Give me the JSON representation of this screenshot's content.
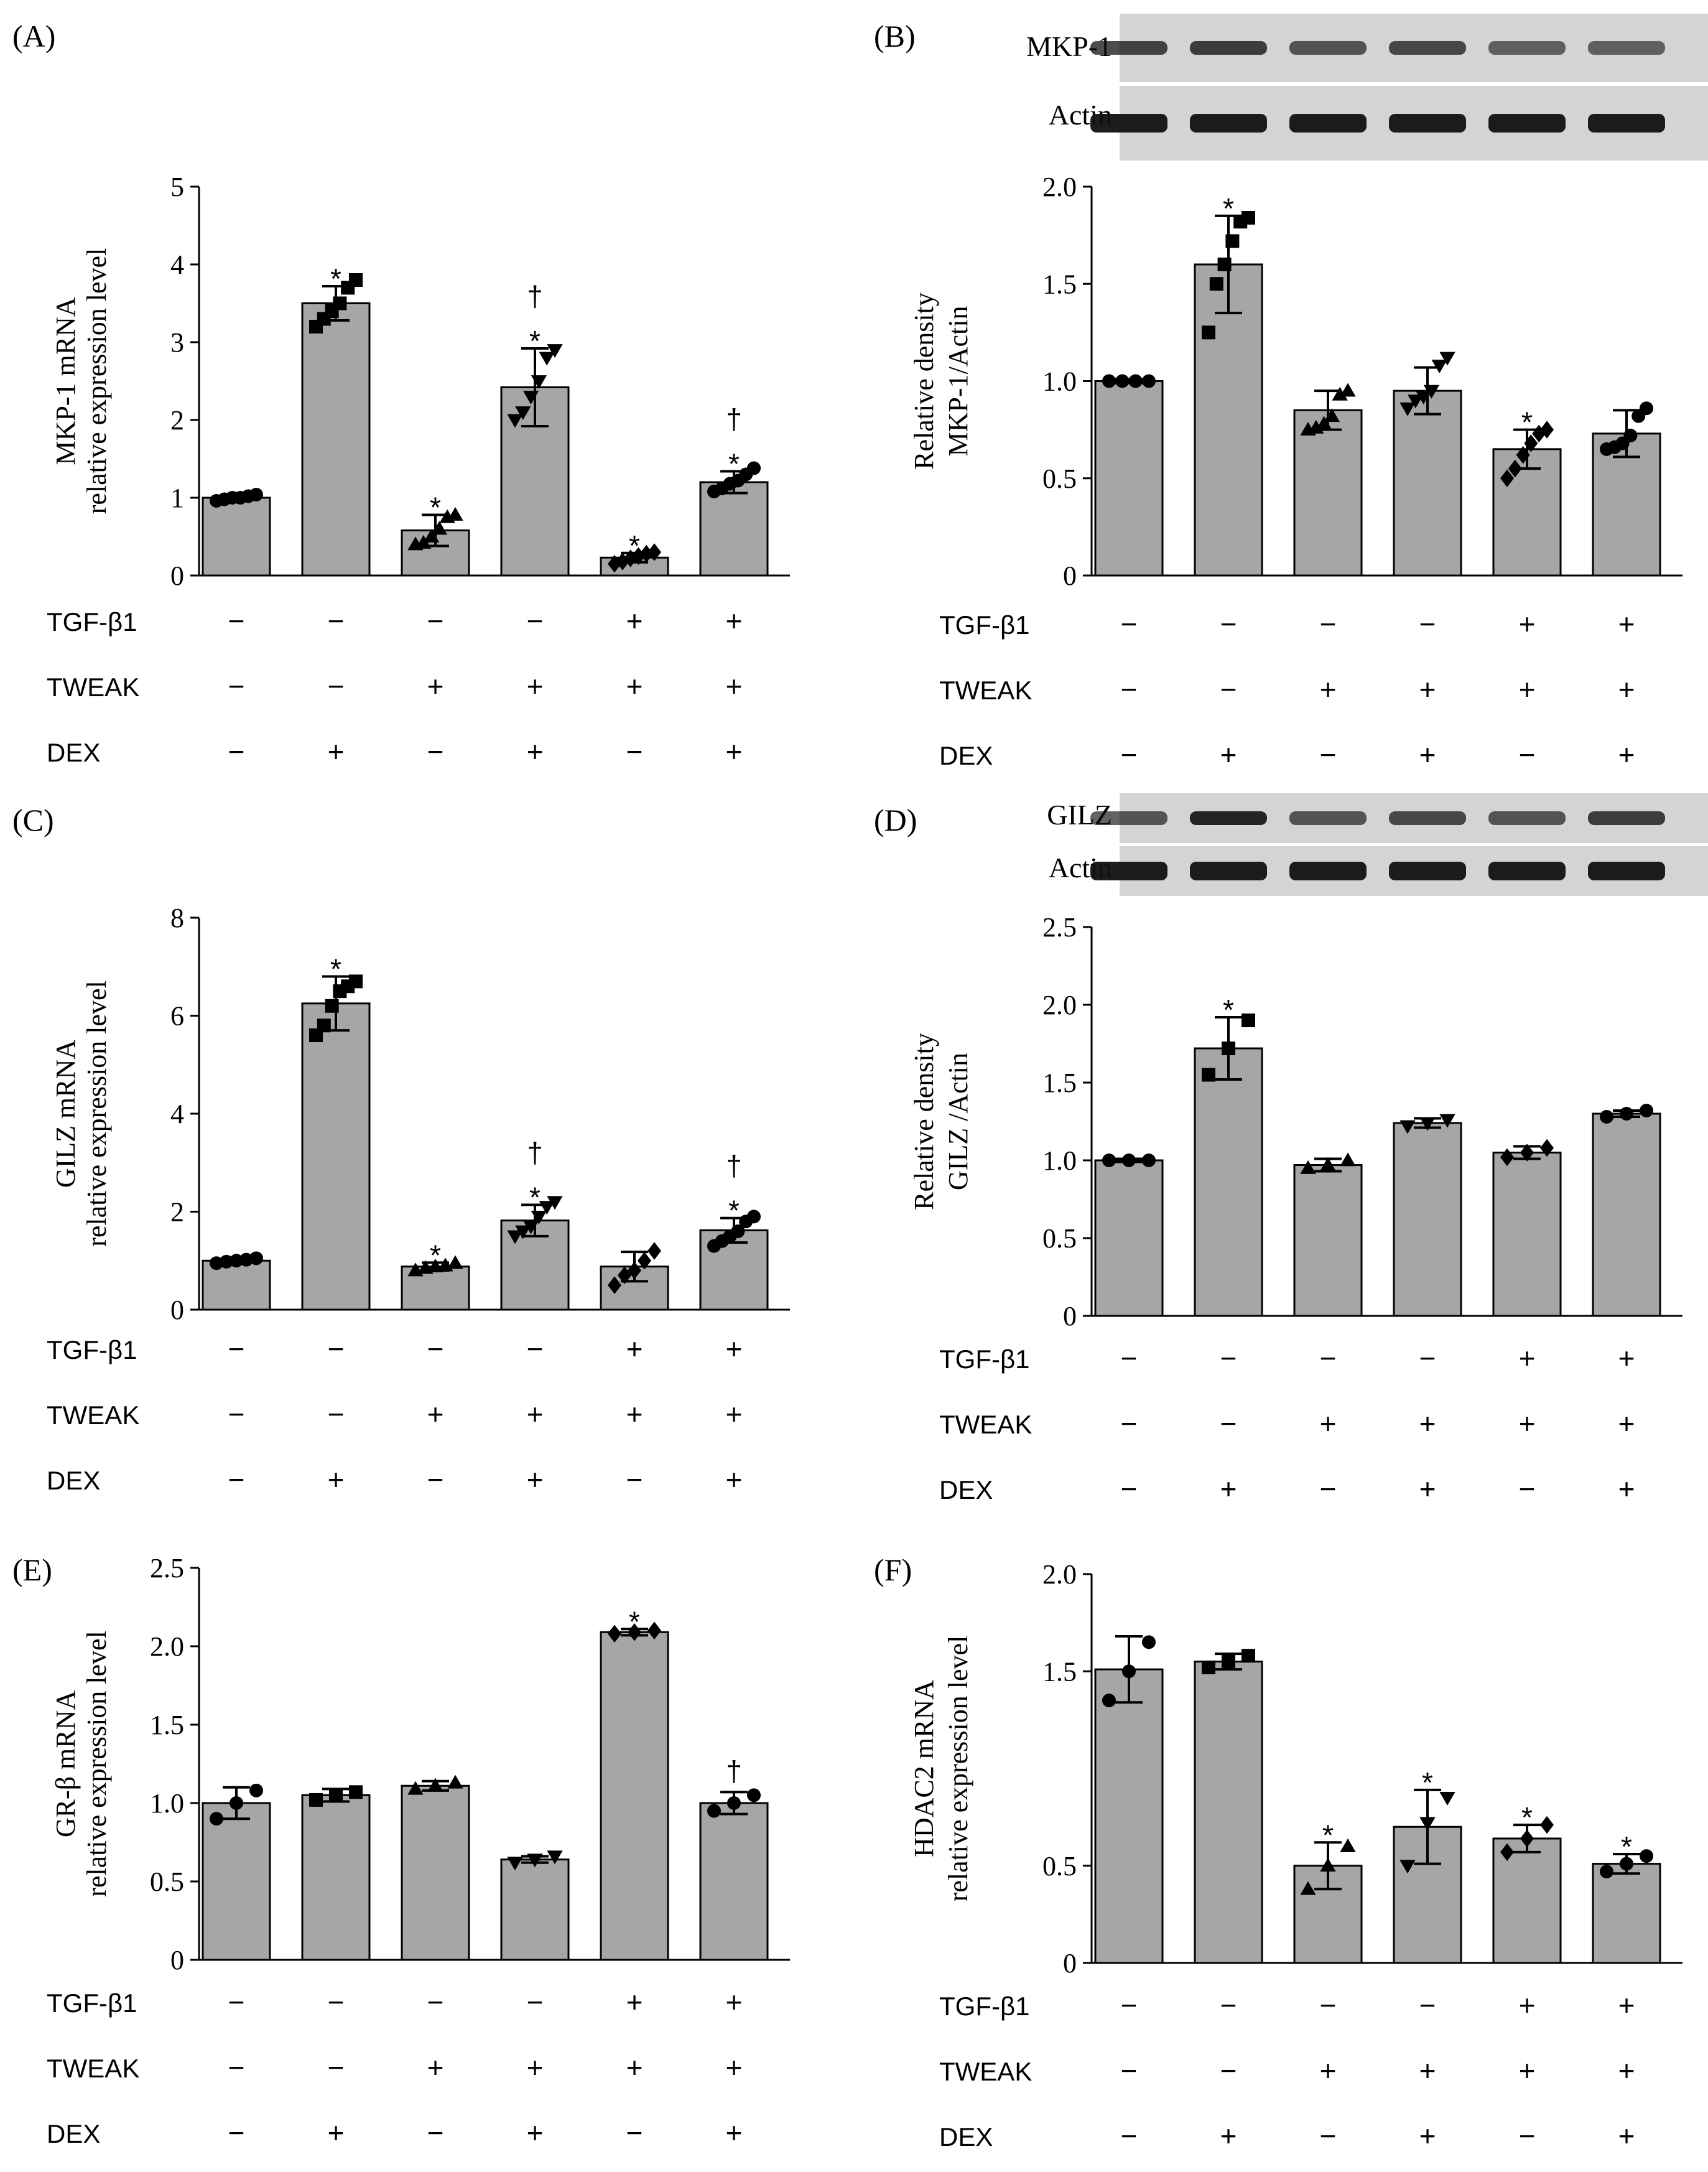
{
  "chart_data": [
    {
      "panel": "(A)",
      "type": "bar",
      "ylabel": [
        "MKP-1 mRNA",
        "relative expression level"
      ],
      "ylim": [
        0,
        5
      ],
      "yticks": [
        "0",
        "1",
        "2",
        "3",
        "4",
        "5"
      ],
      "values": [
        1.0,
        3.5,
        0.58,
        2.42,
        0.23,
        1.2
      ],
      "errors": [
        0.04,
        0.22,
        0.2,
        0.5,
        0.06,
        0.14
      ],
      "marker": [
        "circle",
        "square",
        "triangle",
        "inv-triangle",
        "diamond",
        "circle"
      ],
      "points": [
        [
          0.96,
          0.98,
          1.0,
          1.0,
          1.02,
          1.04
        ],
        [
          3.2,
          3.3,
          3.4,
          3.5,
          3.7,
          3.8
        ],
        [
          0.4,
          0.42,
          0.5,
          0.6,
          0.75,
          0.78
        ],
        [
          2.0,
          2.1,
          2.3,
          2.5,
          2.8,
          2.9
        ],
        [
          0.15,
          0.18,
          0.22,
          0.25,
          0.28,
          0.3
        ],
        [
          1.08,
          1.12,
          1.18,
          1.22,
          1.3,
          1.38
        ]
      ],
      "sig": [
        "",
        "*",
        "*",
        "*|†",
        "*",
        "*|†"
      ],
      "rows": {
        "tgf": [
          "−",
          "−",
          "−",
          "−",
          "+",
          "+"
        ],
        "tweak": [
          "−",
          "−",
          "+",
          "+",
          "+",
          "+"
        ],
        "dex": [
          "−",
          "+",
          "−",
          "+",
          "−",
          "+"
        ]
      }
    },
    {
      "panel": "(B)",
      "type": "bar",
      "ylabel": [
        "Relative density",
        "MKP-1/Actin"
      ],
      "ylim": [
        0,
        2.0
      ],
      "yticks": [
        "0",
        "0.5",
        "1.0",
        "1.5",
        "2.0"
      ],
      "values": [
        1.0,
        1.6,
        0.85,
        0.95,
        0.65,
        0.73
      ],
      "errors": [
        0.01,
        0.25,
        0.1,
        0.12,
        0.1,
        0.12
      ],
      "marker": [
        "circle",
        "square",
        "triangle",
        "inv-triangle",
        "diamond",
        "circle"
      ],
      "points": [
        [
          1.0,
          1.0,
          1.0,
          1.0
        ],
        [
          1.25,
          1.5,
          1.6,
          1.72,
          1.82,
          1.84
        ],
        [
          0.75,
          0.76,
          0.78,
          0.82,
          0.93,
          0.95
        ],
        [
          0.86,
          0.9,
          0.92,
          0.95,
          1.08,
          1.12
        ],
        [
          0.5,
          0.55,
          0.62,
          0.68,
          0.73,
          0.75
        ],
        [
          0.65,
          0.66,
          0.68,
          0.72,
          0.82,
          0.86
        ]
      ],
      "sig": [
        "",
        "*",
        "",
        "",
        "*",
        ""
      ],
      "rows": {
        "tgf": [
          "−",
          "−",
          "−",
          "−",
          "+",
          "+"
        ],
        "tweak": [
          "−",
          "−",
          "+",
          "+",
          "+",
          "+"
        ],
        "dex": [
          "−",
          "+",
          "−",
          "+",
          "−",
          "+"
        ]
      }
    },
    {
      "panel": "(C)",
      "type": "bar",
      "ylabel": [
        "GILZ mRNA",
        "relative expression level"
      ],
      "ylim": [
        0,
        8
      ],
      "yticks": [
        "0",
        "2",
        "4",
        "6",
        "8"
      ],
      "values": [
        1.0,
        6.25,
        0.88,
        1.82,
        0.88,
        1.62
      ],
      "errors": [
        0.06,
        0.55,
        0.08,
        0.32,
        0.3,
        0.25
      ],
      "marker": [
        "circle",
        "square",
        "triangle",
        "inv-triangle",
        "diamond",
        "circle"
      ],
      "points": [
        [
          0.95,
          0.98,
          1.0,
          1.02,
          1.05
        ],
        [
          5.6,
          5.8,
          6.2,
          6.5,
          6.6,
          6.7
        ],
        [
          0.8,
          0.85,
          0.88,
          0.9,
          0.95
        ],
        [
          1.5,
          1.6,
          1.7,
          1.9,
          2.1,
          2.2
        ],
        [
          0.5,
          0.7,
          0.8,
          1.0,
          1.2
        ],
        [
          1.3,
          1.4,
          1.5,
          1.6,
          1.8,
          1.9
        ]
      ],
      "sig": [
        "",
        "*",
        "*",
        "*|†",
        "",
        "*|†"
      ],
      "rows": {
        "tgf": [
          "−",
          "−",
          "−",
          "−",
          "+",
          "+"
        ],
        "tweak": [
          "−",
          "−",
          "+",
          "+",
          "+",
          "+"
        ],
        "dex": [
          "−",
          "+",
          "−",
          "+",
          "−",
          "+"
        ]
      }
    },
    {
      "panel": "(D)",
      "type": "bar",
      "ylabel": [
        "Relative density",
        "GILZ /Actin"
      ],
      "ylim": [
        0,
        2.5
      ],
      "yticks": [
        "0",
        "0.5",
        "1.0",
        "1.5",
        "2.0",
        "2.5"
      ],
      "values": [
        1.0,
        1.72,
        0.97,
        1.24,
        1.05,
        1.3
      ],
      "errors": [
        0.01,
        0.2,
        0.04,
        0.03,
        0.04,
        0.02
      ],
      "marker": [
        "circle",
        "square",
        "triangle",
        "inv-triangle",
        "diamond",
        "circle"
      ],
      "points": [
        [
          1.0,
          1.0,
          1.0
        ],
        [
          1.55,
          1.72,
          1.9
        ],
        [
          0.95,
          0.97,
          1.0
        ],
        [
          1.22,
          1.24,
          1.26
        ],
        [
          1.02,
          1.05,
          1.08
        ],
        [
          1.28,
          1.3,
          1.32
        ]
      ],
      "sig": [
        "",
        "*",
        "",
        "",
        "",
        ""
      ],
      "rows": {
        "tgf": [
          "−",
          "−",
          "−",
          "−",
          "+",
          "+"
        ],
        "tweak": [
          "−",
          "−",
          "+",
          "+",
          "+",
          "+"
        ],
        "dex": [
          "−",
          "+",
          "−",
          "+",
          "−",
          "+"
        ]
      }
    },
    {
      "panel": "(E)",
      "type": "bar",
      "ylabel": [
        "GR-β mRNA",
        "relative expression level"
      ],
      "ylim": [
        0,
        2.5
      ],
      "yticks": [
        "0",
        "0.5",
        "1.0",
        "1.5",
        "2.0",
        "2.5"
      ],
      "values": [
        1.0,
        1.05,
        1.11,
        0.64,
        2.09,
        1.0
      ],
      "errors": [
        0.1,
        0.04,
        0.03,
        0.02,
        0.02,
        0.07
      ],
      "marker": [
        "circle",
        "square",
        "triangle",
        "inv-triangle",
        "diamond",
        "circle"
      ],
      "points": [
        [
          0.9,
          1.0,
          1.08
        ],
        [
          1.02,
          1.05,
          1.07
        ],
        [
          1.09,
          1.11,
          1.13
        ],
        [
          0.62,
          0.64,
          0.66
        ],
        [
          2.08,
          2.09,
          2.1
        ],
        [
          0.95,
          1.0,
          1.05
        ]
      ],
      "sig": [
        "",
        "",
        "",
        "",
        "*",
        "†"
      ],
      "rows": {
        "tgf": [
          "−",
          "−",
          "−",
          "−",
          "+",
          "+"
        ],
        "tweak": [
          "−",
          "−",
          "+",
          "+",
          "+",
          "+"
        ],
        "dex": [
          "−",
          "+",
          "−",
          "+",
          "−",
          "+"
        ]
      }
    },
    {
      "panel": "(F)",
      "type": "bar",
      "ylabel": [
        "HDAC2 mRNA",
        "relative expression level"
      ],
      "ylim": [
        0,
        2.0
      ],
      "yticks": [
        "0",
        "0.5",
        "1.5",
        "2.0"
      ],
      "values": [
        1.51,
        1.55,
        0.5,
        0.7,
        0.64,
        0.51
      ],
      "errors": [
        0.17,
        0.04,
        0.12,
        0.19,
        0.07,
        0.05
      ],
      "marker": [
        "circle",
        "square",
        "triangle",
        "inv-triangle",
        "diamond",
        "circle"
      ],
      "points": [
        [
          1.35,
          1.5,
          1.65
        ],
        [
          1.52,
          1.55,
          1.58
        ],
        [
          0.38,
          0.5,
          0.6
        ],
        [
          0.5,
          0.72,
          0.85
        ],
        [
          0.57,
          0.64,
          0.71
        ],
        [
          0.47,
          0.51,
          0.55
        ]
      ],
      "sig": [
        "",
        "",
        "*",
        "*",
        "*",
        "*"
      ],
      "rows": {
        "tgf": [
          "−",
          "−",
          "−",
          "−",
          "+",
          "+"
        ],
        "tweak": [
          "−",
          "−",
          "+",
          "+",
          "+",
          "+"
        ],
        "dex": [
          "−",
          "+",
          "−",
          "+",
          "−",
          "+"
        ]
      }
    }
  ],
  "row_labels": {
    "tgf": "TGF-β1",
    "tweak": "TWEAK",
    "dex": "DEX"
  },
  "blots": {
    "B": {
      "target": "MKP-1",
      "control": "Actin",
      "target_intensity": [
        0.75,
        0.8,
        0.6,
        0.7,
        0.5,
        0.5
      ]
    },
    "D": {
      "target": "GILZ",
      "control": "Actin",
      "target_intensity": [
        0.6,
        1.0,
        0.6,
        0.7,
        0.6,
        0.8
      ]
    }
  }
}
